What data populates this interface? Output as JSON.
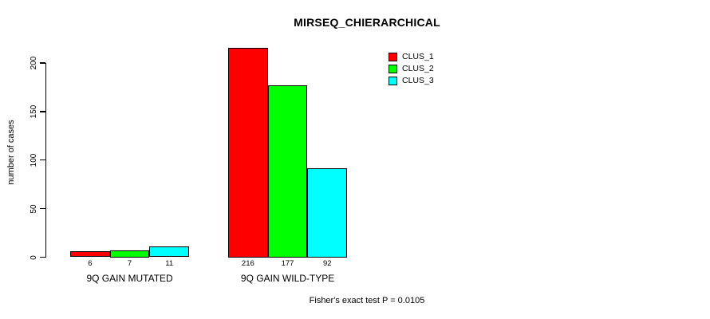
{
  "chart_data": {
    "type": "bar",
    "title": "MIRSEQ_CHIERARCHICAL",
    "ylabel": "number of cases",
    "xlabel": "",
    "categories": [
      "9Q GAIN MUTATED",
      "9Q GAIN WILD-TYPE"
    ],
    "series": [
      {
        "name": "CLUS_1",
        "color": "#ff0000",
        "values": [
          6,
          216
        ]
      },
      {
        "name": "CLUS_2",
        "color": "#00ff00",
        "values": [
          7,
          177
        ]
      },
      {
        "name": "CLUS_3",
        "color": "#00ffff",
        "values": [
          11,
          92
        ]
      }
    ],
    "yticks": [
      0,
      50,
      100,
      150,
      200
    ],
    "ylim": [
      0,
      220
    ],
    "grid": false,
    "legend_position": "top-right",
    "bar_value_labels_shown": true,
    "bar_border_color": "#000000",
    "annotation": "Fisher's exact test P = 0.0105"
  }
}
